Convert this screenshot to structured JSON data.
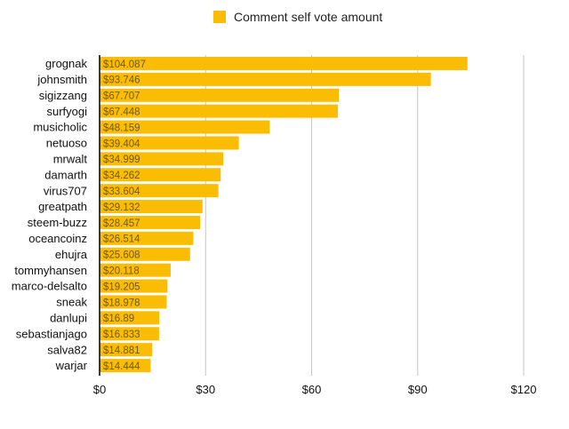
{
  "colors": {
    "bar": "#fbbc04",
    "grid": "#c6c6c6",
    "axis": "#000000",
    "value_label": "#6b5a1e",
    "text": "#111111"
  },
  "legend": {
    "label": "Comment self vote amount"
  },
  "chart_data": {
    "type": "bar",
    "orientation": "horizontal",
    "legend_position": "top-center",
    "grid": true,
    "xlim": [
      0,
      120
    ],
    "ticks": [
      {
        "value": 0,
        "label": "$0"
      },
      {
        "value": 30,
        "label": "$30"
      },
      {
        "value": 60,
        "label": "$60"
      },
      {
        "value": 90,
        "label": "$90"
      },
      {
        "value": 120,
        "label": "$120"
      }
    ],
    "series": [
      {
        "name": "Comment self vote amount"
      }
    ],
    "rows": [
      {
        "category": "grognak",
        "value": 104.087,
        "label": "$104.087"
      },
      {
        "category": "johnsmith",
        "value": 93.746,
        "label": "$93.746"
      },
      {
        "category": "sigizzang",
        "value": 67.707,
        "label": "$67.707"
      },
      {
        "category": "surfyogi",
        "value": 67.448,
        "label": "$67.448"
      },
      {
        "category": "musicholic",
        "value": 48.159,
        "label": "$48.159"
      },
      {
        "category": "netuoso",
        "value": 39.404,
        "label": "$39.404"
      },
      {
        "category": "mrwalt",
        "value": 34.999,
        "label": "$34.999"
      },
      {
        "category": "damarth",
        "value": 34.262,
        "label": "$34.262"
      },
      {
        "category": "virus707",
        "value": 33.604,
        "label": "$33.604"
      },
      {
        "category": "greatpath",
        "value": 29.132,
        "label": "$29.132"
      },
      {
        "category": "steem-buzz",
        "value": 28.457,
        "label": "$28.457"
      },
      {
        "category": "oceancoinz",
        "value": 26.514,
        "label": "$26.514"
      },
      {
        "category": "ehujra",
        "value": 25.608,
        "label": "$25.608"
      },
      {
        "category": "tommyhansen",
        "value": 20.118,
        "label": "$20.118"
      },
      {
        "category": "marco-delsalto",
        "value": 19.205,
        "label": "$19.205"
      },
      {
        "category": "sneak",
        "value": 18.978,
        "label": "$18.978"
      },
      {
        "category": "danlupi",
        "value": 16.89,
        "label": "$16.89"
      },
      {
        "category": "sebastianjago",
        "value": 16.833,
        "label": "$16.833"
      },
      {
        "category": "salva82",
        "value": 14.881,
        "label": "$14.881"
      },
      {
        "category": "warjar",
        "value": 14.444,
        "label": "$14.444"
      }
    ]
  }
}
